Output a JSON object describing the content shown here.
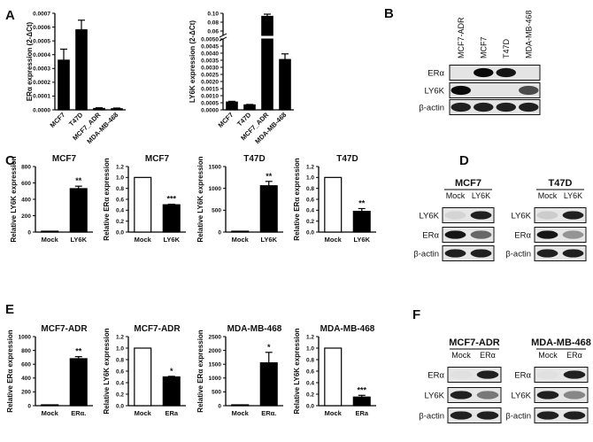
{
  "panels": {
    "A": "A",
    "B": "B",
    "C": "C",
    "D": "D",
    "E": "E",
    "F": "F"
  },
  "western_blots": [
    {
      "id": "B",
      "lanes": [
        "MCF7-ADR",
        "MCF7",
        "T47D",
        "MDA-MB-468"
      ],
      "rows": [
        {
          "label": "ERα",
          "intensity": [
            0.0,
            1.0,
            0.95,
            0.0
          ]
        },
        {
          "label": "LY6K",
          "intensity": [
            1.0,
            0.0,
            0.0,
            0.7
          ]
        },
        {
          "label": "β-actin",
          "intensity": [
            0.9,
            0.9,
            0.9,
            0.9
          ]
        }
      ]
    },
    {
      "id": "D",
      "groups": [
        {
          "title": "MCF7",
          "lanes": [
            "Mock",
            "LY6K"
          ],
          "rows": [
            {
              "label": "LY6K",
              "intensity": [
                0.15,
                0.9
              ]
            },
            {
              "label": "ERα",
              "intensity": [
                0.95,
                0.6
              ]
            },
            {
              "label": "β-actin",
              "intensity": [
                0.9,
                0.9
              ]
            }
          ]
        },
        {
          "title": "T47D",
          "lanes": [
            "Mock",
            "LY6K"
          ],
          "rows": [
            {
              "label": "LY6K",
              "intensity": [
                0.2,
                0.9
              ]
            },
            {
              "label": "ERα",
              "intensity": [
                0.95,
                0.45
              ]
            },
            {
              "label": "β-actin",
              "intensity": [
                0.9,
                0.9
              ]
            }
          ]
        }
      ]
    },
    {
      "id": "F",
      "groups": [
        {
          "title": "MCF7-ADR",
          "lanes": [
            "Mock",
            "ERα"
          ],
          "rows": [
            {
              "label": "ERα",
              "intensity": [
                0.05,
                0.9
              ]
            },
            {
              "label": "LY6K",
              "intensity": [
                0.9,
                0.55
              ]
            },
            {
              "label": "β-actin",
              "intensity": [
                0.9,
                0.9
              ]
            }
          ]
        },
        {
          "title": "MDA-MB-468",
          "lanes": [
            "Mock",
            "ERα"
          ],
          "rows": [
            {
              "label": "ERα",
              "intensity": [
                0.05,
                0.9
              ]
            },
            {
              "label": "LY6K",
              "intensity": [
                0.9,
                0.5
              ]
            },
            {
              "label": "β-actin",
              "intensity": [
                0.9,
                0.9
              ]
            }
          ]
        }
      ]
    }
  ],
  "chart_data": [
    {
      "id": "A1",
      "type": "bar",
      "ylabel": "ERα expression (2-ΔCt)",
      "categories": [
        "MCF7",
        "T47D",
        "MCF7_ADR",
        "MDA-MB-468"
      ],
      "values": [
        0.00036,
        0.00058,
        1e-05,
        8e-06
      ],
      "errors": [
        8e-05,
        7e-05,
        5e-06,
        5e-06
      ],
      "ylim": [
        0,
        0.0007
      ],
      "ticks": [
        "0.0000",
        "0.0001",
        "0.0002",
        "0.0003",
        "0.0004",
        "0.0005",
        "0.0006",
        "0.0007"
      ],
      "tick_values": [
        0,
        0.0001,
        0.0002,
        0.0003,
        0.0004,
        0.0005,
        0.0006,
        0.0007
      ],
      "fill": "#000000"
    },
    {
      "id": "A2",
      "type": "bar",
      "ylabel": "LY6K expression (2-ΔCt)",
      "categories": [
        "MCF7",
        "T47D",
        "MCF7_ADR",
        "MDA-MB-468"
      ],
      "values": [
        0.00055,
        0.00035,
        0.093,
        0.00355
      ],
      "errors": [
        5e-05,
        3e-05,
        0.005,
        0.0004
      ],
      "broken_axis": true,
      "lower_ylim": [
        0,
        0.005
      ],
      "upper_ylim": [
        0.05,
        0.1
      ],
      "lower_ticks": [
        "0.0000",
        "0.0005",
        "0.0010",
        "0.0015",
        "0.0020",
        "0.0025",
        "0.0030",
        "0.0035",
        "0.0040",
        "0.0045",
        "0.0050"
      ],
      "lower_tick_values": [
        0,
        0.0005,
        0.001,
        0.0015,
        0.002,
        0.0025,
        0.003,
        0.0035,
        0.004,
        0.0045,
        0.005
      ],
      "upper_ticks": [
        "0.06",
        "0.08",
        "0.10"
      ],
      "upper_tick_values": [
        0.06,
        0.08,
        0.1
      ],
      "fill": "#000000"
    },
    {
      "id": "C1",
      "type": "bar",
      "title": "MCF7",
      "ylabel": "Relative LY6K expression",
      "categories": [
        "Mock",
        "LY6K"
      ],
      "values": [
        1,
        530
      ],
      "errors": [
        0,
        30
      ],
      "ylim": [
        0,
        800
      ],
      "ticks": [
        "0",
        "200",
        "400",
        "600",
        "800"
      ],
      "tick_values": [
        0,
        200,
        400,
        600,
        800
      ],
      "fills": [
        "#ffffff",
        "#000000"
      ],
      "stars": [
        "",
        "**"
      ]
    },
    {
      "id": "C2",
      "type": "bar",
      "title": "MCF7",
      "ylabel": "Relative ERα expression",
      "categories": [
        "Mock",
        "LY6K"
      ],
      "values": [
        1.0,
        0.5
      ],
      "errors": [
        0,
        0.01
      ],
      "ylim": [
        0,
        1.2
      ],
      "ticks": [
        "0.0",
        "0.2",
        "0.4",
        "0.6",
        "0.8",
        "1.0",
        "1.2"
      ],
      "tick_values": [
        0,
        0.2,
        0.4,
        0.6,
        0.8,
        1.0,
        1.2
      ],
      "fills": [
        "#ffffff",
        "#000000"
      ],
      "stars": [
        "",
        "***"
      ]
    },
    {
      "id": "C3",
      "type": "bar",
      "title": "T47D",
      "ylabel": "Relative LY6K expression",
      "categories": [
        "Mock",
        "LY6K"
      ],
      "values": [
        1,
        1060
      ],
      "errors": [
        0,
        100
      ],
      "ylim": [
        0,
        1500
      ],
      "ticks": [
        "0",
        "500",
        "1000",
        "1500"
      ],
      "tick_values": [
        0,
        500,
        1000,
        1500
      ],
      "fills": [
        "#ffffff",
        "#000000"
      ],
      "stars": [
        "",
        "**"
      ]
    },
    {
      "id": "C4",
      "type": "bar",
      "title": "T47D",
      "ylabel": "Relative ERα expression",
      "categories": [
        "Mock",
        "LY6K"
      ],
      "values": [
        1.0,
        0.38
      ],
      "errors": [
        0,
        0.05
      ],
      "ylim": [
        0,
        1.2
      ],
      "ticks": [
        "0.0",
        "0.2",
        "0.4",
        "0.6",
        "0.8",
        "1.0",
        "1.2"
      ],
      "tick_values": [
        0,
        0.2,
        0.4,
        0.6,
        0.8,
        1.0,
        1.2
      ],
      "fills": [
        "#ffffff",
        "#000000"
      ],
      "stars": [
        "",
        "**"
      ]
    },
    {
      "id": "E1",
      "type": "bar",
      "title": "MCF7-ADR",
      "ylabel": "Relative ERα expression",
      "categories": [
        "Mock",
        "ERα."
      ],
      "values": [
        1,
        680
      ],
      "errors": [
        0,
        30
      ],
      "ylim": [
        0,
        1000
      ],
      "ticks": [
        "0",
        "200",
        "400",
        "600",
        "800",
        "1000"
      ],
      "tick_values": [
        0,
        200,
        400,
        600,
        800,
        1000
      ],
      "fills": [
        "#ffffff",
        "#000000"
      ],
      "stars": [
        "",
        "**"
      ]
    },
    {
      "id": "E2",
      "type": "bar",
      "title": "MCF7-ADR",
      "ylabel": "Relative LY6K expression",
      "categories": [
        "Mock",
        "ERa"
      ],
      "values": [
        1.0,
        0.5
      ],
      "errors": [
        0,
        0.01
      ],
      "ylim": [
        0,
        1.2
      ],
      "ticks": [
        "0.0",
        "0.2",
        "0.4",
        "0.6",
        "0.8",
        "1.0",
        "1.2"
      ],
      "tick_values": [
        0,
        0.2,
        0.4,
        0.6,
        0.8,
        1.0,
        1.2
      ],
      "fills": [
        "#ffffff",
        "#000000"
      ],
      "stars": [
        "",
        "*"
      ]
    },
    {
      "id": "E3",
      "type": "bar",
      "title": "MDA-MB-468",
      "ylabel": "Relative ERα expression",
      "categories": [
        "Mock",
        "ERα."
      ],
      "values": [
        1,
        1550
      ],
      "errors": [
        0,
        380
      ],
      "ylim": [
        0,
        2500
      ],
      "ticks": [
        "0",
        "500",
        "1000",
        "1500",
        "2000",
        "2500"
      ],
      "tick_values": [
        0,
        500,
        1000,
        1500,
        2000,
        2500
      ],
      "fills": [
        "#ffffff",
        "#000000"
      ],
      "stars": [
        "",
        "*"
      ]
    },
    {
      "id": "E4",
      "type": "bar",
      "title": "MDA-MB-468",
      "ylabel": "Relative LY6K expression",
      "categories": [
        "Mock",
        "ERa"
      ],
      "values": [
        1.0,
        0.15
      ],
      "errors": [
        0,
        0.03
      ],
      "ylim": [
        0,
        1.2
      ],
      "ticks": [
        "0.0",
        "0.2",
        "0.4",
        "0.6",
        "0.8",
        "1.0",
        "1.2"
      ],
      "tick_values": [
        0,
        0.2,
        0.4,
        0.6,
        0.8,
        1.0,
        1.2
      ],
      "fills": [
        "#ffffff",
        "#000000"
      ],
      "stars": [
        "",
        "***"
      ]
    }
  ]
}
